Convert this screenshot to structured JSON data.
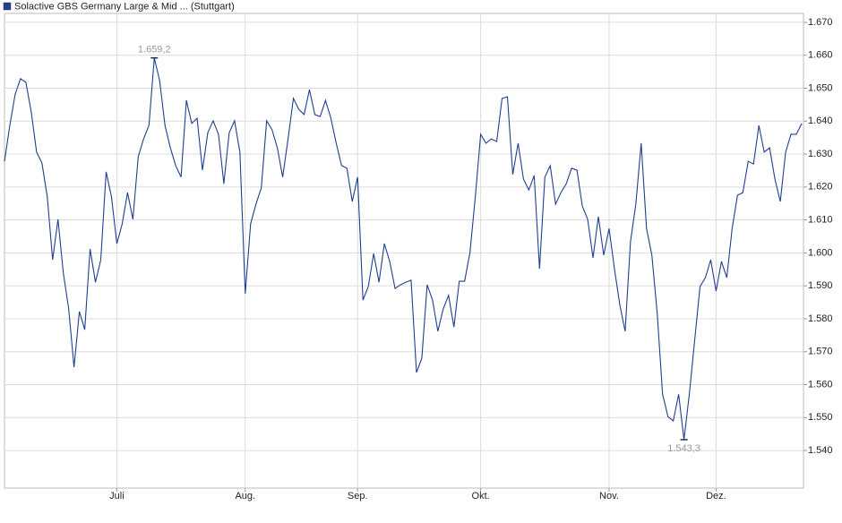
{
  "chart_data": {
    "type": "line",
    "ylim": [
      1528.6,
      1672.7
    ],
    "yticks": [
      {
        "value": 1540,
        "label": "1.540"
      },
      {
        "value": 1550,
        "label": "1.550"
      },
      {
        "value": 1560,
        "label": "1.560"
      },
      {
        "value": 1570,
        "label": "1.570"
      },
      {
        "value": 1580,
        "label": "1.580"
      },
      {
        "value": 1590,
        "label": "1.590"
      },
      {
        "value": 1600,
        "label": "1.600"
      },
      {
        "value": 1610,
        "label": "1.610"
      },
      {
        "value": 1620,
        "label": "1.620"
      },
      {
        "value": 1630,
        "label": "1.630"
      },
      {
        "value": 1640,
        "label": "1.640"
      },
      {
        "value": 1650,
        "label": "1.650"
      },
      {
        "value": 1660,
        "label": "1.660"
      },
      {
        "value": 1670,
        "label": "1.670"
      }
    ],
    "grid": true,
    "categories": [
      null,
      null,
      null,
      null,
      null,
      null,
      null,
      null,
      null,
      null,
      null,
      null,
      null,
      null,
      null,
      null,
      null,
      null,
      null,
      null,
      null,
      "Juli",
      null,
      null,
      null,
      null,
      null,
      null,
      null,
      null,
      null,
      null,
      null,
      null,
      null,
      null,
      null,
      null,
      null,
      null,
      null,
      null,
      null,
      null,
      null,
      "Aug.",
      null,
      null,
      null,
      null,
      null,
      null,
      null,
      null,
      null,
      null,
      null,
      null,
      null,
      null,
      null,
      null,
      null,
      null,
      null,
      null,
      "Sep.",
      null,
      null,
      null,
      null,
      null,
      null,
      null,
      null,
      null,
      null,
      null,
      null,
      null,
      null,
      null,
      null,
      null,
      null,
      null,
      null,
      null,
      null,
      "Okt.",
      null,
      null,
      null,
      null,
      null,
      null,
      null,
      null,
      null,
      null,
      null,
      null,
      null,
      null,
      null,
      null,
      null,
      null,
      null,
      null,
      null,
      null,
      null,
      "Nov.",
      null,
      null,
      null,
      null,
      null,
      null,
      null,
      null,
      null,
      null,
      null,
      null,
      null,
      null,
      null,
      null,
      null,
      null,
      null,
      "Dez.",
      null,
      null,
      null,
      null,
      null,
      null,
      null,
      null,
      null,
      null,
      null,
      null,
      null,
      null,
      null,
      null
    ],
    "series": [
      {
        "name": "Solactive GBS Germany Large & Mid ... (Stuttgart)",
        "color": "#1f3f8f",
        "values": [
          1627.8,
          1638.7,
          1648.2,
          1652.9,
          1651.8,
          1642.8,
          1630.6,
          1627.3,
          1617.0,
          1597.9,
          1610.2,
          1593.9,
          1583.0,
          1565.3,
          1582.2,
          1576.7,
          1601.2,
          1591.1,
          1597.9,
          1624.6,
          1617.0,
          1602.8,
          1608.8,
          1618.3,
          1610.2,
          1629.2,
          1634.6,
          1638.7,
          1659.2,
          1652.3,
          1638.7,
          1631.9,
          1626.5,
          1623.0,
          1646.3,
          1639.3,
          1640.9,
          1625.1,
          1636.5,
          1640.1,
          1636.0,
          1621.0,
          1636.5,
          1640.1,
          1630.6,
          1587.6,
          1608.8,
          1614.8,
          1619.7,
          1640.1,
          1637.4,
          1631.9,
          1623.0,
          1634.6,
          1646.9,
          1643.6,
          1642.0,
          1649.6,
          1642.0,
          1641.4,
          1646.3,
          1640.9,
          1633.3,
          1626.5,
          1625.7,
          1615.6,
          1623.0,
          1585.7,
          1589.8,
          1599.8,
          1591.1,
          1602.8,
          1597.4,
          1589.2,
          1590.3,
          1591.1,
          1591.7,
          1563.7,
          1568.0,
          1590.3,
          1585.7,
          1576.2,
          1583.0,
          1587.1,
          1577.5,
          1591.4,
          1591.4,
          1600.1,
          1617.0,
          1636.0,
          1633.3,
          1634.6,
          1633.8,
          1646.9,
          1647.4,
          1623.8,
          1633.3,
          1622.4,
          1619.1,
          1623.5,
          1595.2,
          1623.0,
          1626.5,
          1614.8,
          1618.3,
          1621.0,
          1625.7,
          1625.1,
          1614.2,
          1610.2,
          1598.5,
          1611.0,
          1599.3,
          1607.4,
          1595.2,
          1584.3,
          1576.2,
          1603.4,
          1614.8,
          1633.3,
          1607.4,
          1599.3,
          1581.6,
          1557.1,
          1550.3,
          1549.0,
          1557.1,
          1543.3,
          1557.1,
          1573.5,
          1589.8,
          1592.5,
          1597.9,
          1588.4,
          1597.4,
          1592.5,
          1607.4,
          1617.5,
          1618.3,
          1627.8,
          1627.0,
          1638.7,
          1630.6,
          1631.9,
          1622.4,
          1615.6,
          1630.6,
          1636.0,
          1636.0,
          1639.3
        ],
        "value_labels": [
          null,
          null,
          null,
          null,
          null,
          null,
          null,
          null,
          null,
          null,
          null,
          null,
          null,
          null,
          null,
          null,
          null,
          null,
          null,
          null,
          null,
          null,
          null,
          null,
          null,
          null,
          null,
          null,
          "1.659,2",
          null,
          null,
          null,
          null,
          null,
          null,
          null,
          null,
          null,
          null,
          null,
          null,
          null,
          null,
          null,
          null,
          null,
          null,
          null,
          null,
          null,
          null,
          null,
          null,
          null,
          null,
          null,
          null,
          null,
          null,
          null,
          null,
          null,
          null,
          null,
          null,
          null,
          null,
          null,
          null,
          null,
          null,
          null,
          null,
          null,
          null,
          null,
          null,
          null,
          null,
          null,
          null,
          null,
          null,
          null,
          null,
          null,
          null,
          null,
          null,
          null,
          null,
          null,
          null,
          null,
          null,
          null,
          null,
          null,
          null,
          null,
          null,
          null,
          null,
          null,
          null,
          null,
          null,
          null,
          null,
          null,
          null,
          null,
          null,
          null,
          null,
          null,
          null,
          null,
          null,
          null,
          null,
          null,
          null,
          null,
          null,
          null,
          null,
          "1.543,3",
          null,
          null,
          null,
          null,
          null,
          null,
          null,
          null,
          null,
          null,
          null,
          null,
          null,
          null,
          null,
          null,
          null,
          null,
          null,
          null,
          null,
          null
        ]
      }
    ]
  }
}
